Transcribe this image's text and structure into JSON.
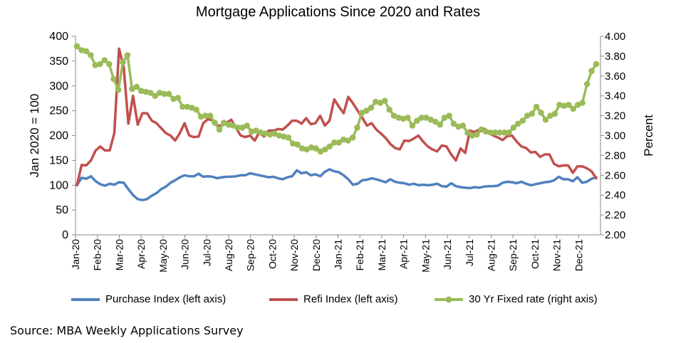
{
  "title": "Mortgage Applications Since 2020 and Rates",
  "source": "Source: MBA Weekly Applications Survey",
  "legend": {
    "purchase": "Purchase Index (left axis)",
    "refi": "Refi Index (left axis)",
    "rate": "30 Yr Fixed rate (right axis)"
  },
  "chart_data": {
    "type": "line",
    "ylabel": "Jan 2020 = 100",
    "y2label": "Percent",
    "ylim": [
      0,
      400
    ],
    "y2lim": [
      2.0,
      4.0
    ],
    "yticks": [
      "0",
      "50",
      "100",
      "150",
      "200",
      "250",
      "300",
      "350",
      "400"
    ],
    "y2ticks": [
      "2.00",
      "2.20",
      "2.40",
      "2.60",
      "2.80",
      "3.00",
      "3.20",
      "3.40",
      "3.60",
      "3.80",
      "4.00"
    ],
    "xticks": [
      "Jan-20",
      "Feb-20",
      "Mar-20",
      "Apr-20",
      "May-20",
      "Jun-20",
      "Jul-20",
      "Aug-20",
      "Sep-20",
      "Oct-20",
      "Nov-20",
      "Dec-20",
      "Jan-21",
      "Feb-21",
      "Mar-21",
      "Apr-21",
      "May-21",
      "Jun-21",
      "Jul-21",
      "Aug-21",
      "Sep-21",
      "Oct-21",
      "Nov-21",
      "Dec-21"
    ],
    "grid": false,
    "legend_position": "bottom",
    "colors": {
      "purchase": "#4f81bd",
      "refi": "#c0504d",
      "rate": "#9bbb59"
    },
    "series": [
      {
        "name": "Purchase Index (left axis)",
        "axis": "left",
        "values": [
          100,
          115,
          113,
          118,
          108,
          102,
          99,
          103,
          101,
          106,
          105,
          92,
          80,
          72,
          70,
          72,
          79,
          84,
          92,
          97,
          105,
          110,
          116,
          120,
          118,
          118,
          123,
          117,
          118,
          117,
          114,
          116,
          117,
          117,
          118,
          120,
          120,
          124,
          122,
          120,
          118,
          116,
          117,
          114,
          112,
          116,
          118,
          130,
          124,
          126,
          120,
          122,
          118,
          127,
          132,
          128,
          126,
          120,
          112,
          101,
          103,
          110,
          111,
          114,
          112,
          109,
          106,
          112,
          107,
          105,
          104,
          101,
          103,
          100,
          101,
          100,
          101,
          103,
          98,
          97,
          104,
          98,
          96,
          95,
          94,
          96,
          95,
          97,
          98,
          98,
          99,
          105,
          107,
          106,
          104,
          107,
          103,
          100,
          102,
          104,
          106,
          107,
          110,
          117,
          112,
          112,
          108,
          116,
          105,
          107,
          113,
          116
        ]
      },
      {
        "name": "Refi Index (left axis)",
        "axis": "left",
        "values": [
          100,
          141,
          140,
          150,
          170,
          178,
          170,
          170,
          205,
          375,
          337,
          224,
          280,
          222,
          245,
          245,
          230,
          225,
          215,
          205,
          200,
          190,
          205,
          225,
          200,
          197,
          198,
          225,
          233,
          231,
          220,
          220,
          226,
          232,
          215,
          200,
          197,
          200,
          190,
          207,
          198,
          210,
          210,
          213,
          212,
          220,
          230,
          230,
          224,
          235,
          223,
          225,
          240,
          220,
          230,
          273,
          258,
          245,
          278,
          265,
          250,
          236,
          220,
          225,
          212,
          204,
          195,
          183,
          175,
          172,
          190,
          189,
          194,
          200,
          188,
          178,
          172,
          168,
          180,
          178,
          162,
          150,
          174,
          165,
          210,
          207,
          212,
          214,
          207,
          200,
          196,
          191,
          199,
          200,
          188,
          178,
          175,
          166,
          167,
          157,
          162,
          162,
          143,
          138,
          140,
          140,
          125,
          138,
          138,
          134,
          128,
          114
        ]
      },
      {
        "name": "30 Yr Fixed rate (right axis)",
        "axis": "right",
        "values": [
          3.9,
          3.86,
          3.85,
          3.81,
          3.71,
          3.72,
          3.76,
          3.72,
          3.57,
          3.46,
          3.74,
          3.81,
          3.47,
          3.49,
          3.45,
          3.44,
          3.43,
          3.4,
          3.43,
          3.42,
          3.42,
          3.37,
          3.38,
          3.29,
          3.29,
          3.28,
          3.26,
          3.19,
          3.2,
          3.2,
          3.13,
          3.06,
          3.13,
          3.11,
          3.1,
          3.08,
          3.08,
          3.1,
          3.04,
          3.05,
          3.03,
          3.02,
          3.01,
          3.02,
          3.0,
          2.99,
          2.98,
          2.92,
          2.91,
          2.87,
          2.86,
          2.88,
          2.87,
          2.84,
          2.86,
          2.89,
          2.93,
          2.93,
          2.96,
          2.95,
          2.98,
          3.08,
          3.23,
          3.25,
          3.28,
          3.34,
          3.33,
          3.35,
          3.26,
          3.2,
          3.18,
          3.17,
          3.18,
          3.1,
          3.15,
          3.18,
          3.18,
          3.16,
          3.14,
          3.11,
          3.18,
          3.2,
          3.12,
          3.09,
          3.1,
          3.03,
          3.0,
          3.01,
          3.06,
          3.04,
          3.03,
          3.03,
          3.03,
          3.03,
          3.03,
          3.08,
          3.12,
          3.15,
          3.2,
          3.22,
          3.29,
          3.23,
          3.16,
          3.2,
          3.22,
          3.31,
          3.3,
          3.31,
          3.27,
          3.31,
          3.33,
          3.52,
          3.65,
          3.72
        ]
      }
    ]
  }
}
